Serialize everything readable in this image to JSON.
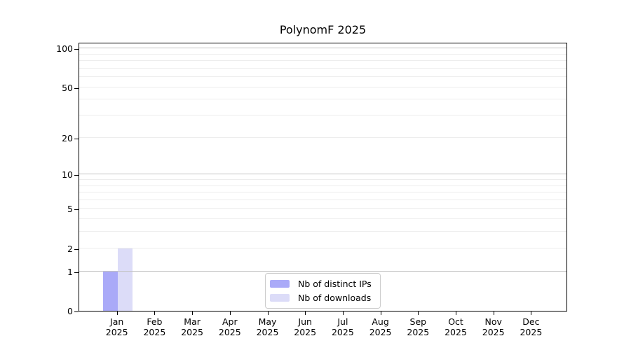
{
  "chart_data": {
    "type": "bar",
    "title": "PolynomF 2025",
    "categories": [
      "Jan",
      "Feb",
      "Mar",
      "Apr",
      "May",
      "Jun",
      "Jul",
      "Aug",
      "Sep",
      "Oct",
      "Nov",
      "Dec"
    ],
    "x_tick_year": "2025",
    "series": [
      {
        "name": "Nb of distinct IPs",
        "color": "#aaaaf8",
        "values": [
          1,
          0,
          0,
          0,
          0,
          0,
          0,
          0,
          0,
          0,
          0,
          0
        ]
      },
      {
        "name": "Nb of downloads",
        "color": "#dcdcf8",
        "values": [
          2,
          0,
          0,
          0,
          0,
          0,
          0,
          0,
          0,
          0,
          0,
          0
        ]
      }
    ],
    "yscale": "log1p",
    "ylim": [
      0,
      112
    ],
    "y_ticks": [
      0,
      1,
      2,
      5,
      10,
      20,
      50,
      100
    ],
    "y_major_gridlines": [
      1,
      10,
      100
    ],
    "y_minor_gridlines": [
      2,
      3,
      4,
      5,
      6,
      7,
      8,
      9,
      20,
      30,
      40,
      50,
      60,
      70,
      80,
      90
    ],
    "grid": true,
    "legend_position": "lower center",
    "axis_below": false
  },
  "colors": {
    "major_grid": "#c3c3c3",
    "minor_grid": "#ededed",
    "spine": "#000000",
    "text": "#000000",
    "legend_border": "#cccccc",
    "legend_bg": "#ffffff",
    "background": "#ffffff"
  }
}
